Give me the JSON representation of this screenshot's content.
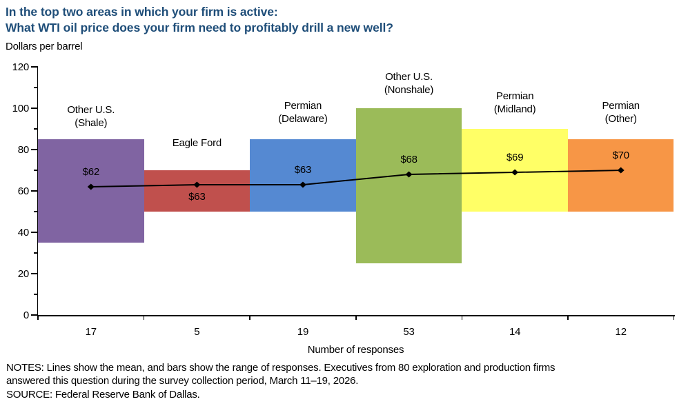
{
  "header": {
    "title_line1": "In the top two areas in which your firm is active:",
    "title_line2": "What WTI oil price does your firm need to profitably drill a new well?",
    "title_color": "#1F4E79"
  },
  "chart_data": {
    "type": "bar",
    "subtype": "floating-range-bars-with-mean-line",
    "title": "In the top two areas in which your firm is active: What WTI oil price does your firm need to profitably drill a new well?",
    "ylabel": "Dollars per barrel",
    "xlabel": "Number of responses",
    "ylim": [
      0,
      120
    ],
    "ytick_step": 20,
    "yminor_step": 10,
    "grid": false,
    "legend": "none",
    "line_color": "#000000",
    "categories": [
      "Other U.S. (Shale)",
      "Eagle Ford",
      "Permian (Delaware)",
      "Other U.S. (Nonshale)",
      "Permian (Midland)",
      "Permian (Other)"
    ],
    "series": [
      {
        "name": "Other U.S. (Shale)",
        "label_lines": [
          "Other U.S.",
          "(Shale)"
        ],
        "range_low": 35,
        "range_high": 85,
        "mean": 62,
        "mean_label": "$62",
        "mean_label_position": "above",
        "responses": 17,
        "color": "#8064A2",
        "label_gap": 14
      },
      {
        "name": "Eagle Ford",
        "label_lines": [
          "Eagle Ford"
        ],
        "range_low": 50,
        "range_high": 70,
        "mean": 63,
        "mean_label": "$63",
        "mean_label_position": "below",
        "responses": 5,
        "color": "#C0504D",
        "label_gap": 30
      },
      {
        "name": "Permian (Delaware)",
        "label_lines": [
          "Permian",
          "(Delaware)"
        ],
        "range_low": 50,
        "range_high": 85,
        "mean": 63,
        "mean_label": "$63",
        "mean_label_position": "above",
        "responses": 19,
        "color": "#5589D2",
        "label_gap": 20
      },
      {
        "name": "Other U.S. (Nonshale)",
        "label_lines": [
          "Other U.S.",
          "(Nonshale)"
        ],
        "range_low": 25,
        "range_high": 100,
        "mean": 68,
        "mean_label": "$68",
        "mean_label_position": "above",
        "responses": 53,
        "color": "#9BBB59",
        "label_gap": 17
      },
      {
        "name": "Permian (Midland)",
        "label_lines": [
          "Permian",
          "(Midland)"
        ],
        "range_low": 50,
        "range_high": 90,
        "mean": 69,
        "mean_label": "$69",
        "mean_label_position": "above",
        "responses": 14,
        "color": "#FFFF66",
        "label_gap": 19
      },
      {
        "name": "Permian (Other)",
        "label_lines": [
          "Permian",
          "(Other)"
        ],
        "range_low": 50,
        "range_high": 85,
        "mean": 70,
        "mean_label": "$70",
        "mean_label_position": "above",
        "responses": 12,
        "color": "#F79646",
        "label_gap": 20
      }
    ]
  },
  "footer": {
    "notes_line1": "NOTES: Lines show the mean, and bars show the range of responses. Executives from 80 exploration and production firms",
    "notes_line2": "answered this question during the survey collection period, March 11–19, 2026.",
    "source": "SOURCE: Federal Reserve Bank of Dallas."
  }
}
